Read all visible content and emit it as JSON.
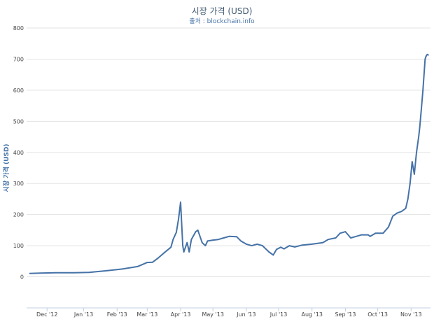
{
  "chart_data": {
    "type": "line",
    "title": "시장 가격 (USD)",
    "subtitle": "출처 : blockchain.info",
    "ylabel": "시장 가격 (USD)",
    "xlabel": "",
    "ylim": [
      -100,
      800
    ],
    "yticks": [
      0,
      100,
      200,
      300,
      400,
      500,
      600,
      700,
      800
    ],
    "x_ticks": [
      "Dec '12",
      "Jan '13",
      "Feb '13",
      "Mar '13",
      "Apr '13",
      "May '13",
      "Jun '13",
      "Jul '13",
      "Aug '13",
      "Sep '13",
      "Oct '13",
      "Nov '13"
    ],
    "grid": true,
    "legend": "none",
    "line_color": "#4572a7",
    "series": [
      {
        "x": [
          "2012-11-21",
          "2012-12-01",
          "2012-12-15",
          "2013-01-01",
          "2013-01-15",
          "2013-02-01",
          "2013-02-15",
          "2013-03-01",
          "2013-03-10",
          "2013-03-15",
          "2013-03-20",
          "2013-03-25",
          "2013-04-01",
          "2013-04-03",
          "2013-04-06",
          "2013-04-08",
          "2013-04-10",
          "2013-04-12",
          "2013-04-13",
          "2013-04-16",
          "2013-04-18",
          "2013-04-20",
          "2013-04-24",
          "2013-04-26",
          "2013-04-30",
          "2013-05-03",
          "2013-05-05",
          "2013-05-10",
          "2013-05-15",
          "2013-05-20",
          "2013-05-25",
          "2013-06-01",
          "2013-06-05",
          "2013-06-10",
          "2013-06-15",
          "2013-06-20",
          "2013-06-25",
          "2013-07-01",
          "2013-07-05",
          "2013-07-08",
          "2013-07-12",
          "2013-07-15",
          "2013-07-20",
          "2013-07-25",
          "2013-08-01",
          "2013-08-10",
          "2013-08-20",
          "2013-08-25",
          "2013-09-01",
          "2013-09-05",
          "2013-09-10",
          "2013-09-15",
          "2013-09-20",
          "2013-09-25",
          "2013-10-01",
          "2013-10-03",
          "2013-10-08",
          "2013-10-15",
          "2013-10-20",
          "2013-10-24",
          "2013-10-28",
          "2013-11-01",
          "2013-11-03",
          "2013-11-05",
          "2013-11-07",
          "2013-11-09",
          "2013-11-11",
          "2013-11-13",
          "2013-11-15",
          "2013-11-17",
          "2013-11-18",
          "2013-11-19",
          "2013-11-21",
          "2013-11-23",
          "2013-11-24",
          "2013-11-25",
          "2013-11-26"
        ],
        "y": [
          11,
          12,
          13,
          13,
          14,
          20,
          25,
          33,
          46,
          47,
          60,
          75,
          95,
          120,
          143,
          185,
          240,
          100,
          80,
          110,
          80,
          120,
          145,
          150,
          110,
          100,
          115,
          118,
          120,
          125,
          130,
          129,
          115,
          105,
          100,
          105,
          100,
          80,
          70,
          88,
          95,
          90,
          100,
          96,
          102,
          105,
          110,
          120,
          125,
          140,
          145,
          125,
          130,
          135,
          135,
          130,
          140,
          140,
          160,
          195,
          205,
          210,
          215,
          220,
          250,
          300,
          370,
          330,
          400,
          450,
          480,
          520,
          600,
          700,
          710,
          715,
          713
        ]
      }
    ]
  }
}
